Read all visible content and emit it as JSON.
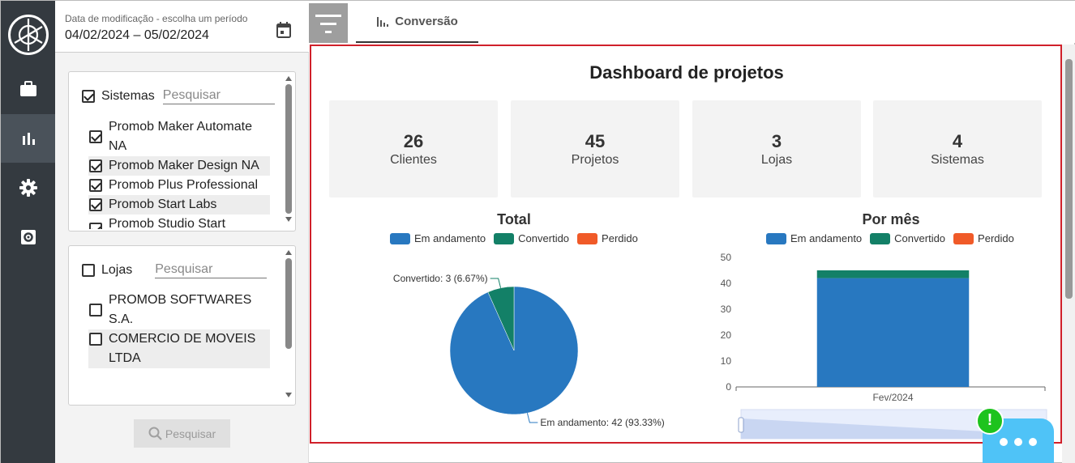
{
  "date_filter": {
    "label": "Data de modificação - escolha um período",
    "value": "04/02/2024 – 05/02/2024"
  },
  "systems": {
    "label": "Sistemas",
    "search_placeholder": "Pesquisar",
    "items": [
      {
        "line1": "Promob Maker Automate",
        "line2": "NA"
      },
      {
        "line1": "Promob Maker Design NA"
      },
      {
        "line1": "Promob Plus Professional"
      },
      {
        "line1": "Promob Start Labs"
      },
      {
        "line1": "Promob Studio Start"
      }
    ]
  },
  "stores": {
    "label": "Lojas",
    "search_placeholder": "Pesquisar",
    "items": [
      {
        "line1": "PROMOB SOFTWARES S.A."
      },
      {
        "line1": "COMERCIO DE MOVEIS",
        "line2": "LTDA"
      }
    ]
  },
  "search_button": "Pesquisar",
  "tab": {
    "label": "Conversão"
  },
  "dashboard": {
    "title": "Dashboard de projetos",
    "cards": [
      {
        "value": "26",
        "caption": "Clientes"
      },
      {
        "value": "45",
        "caption": "Projetos"
      },
      {
        "value": "3",
        "caption": "Lojas"
      },
      {
        "value": "4",
        "caption": "Sistemas"
      }
    ]
  },
  "chart_data": [
    {
      "type": "pie",
      "title": "Total",
      "legend": [
        "Em andamento",
        "Convertido",
        "Perdido"
      ],
      "colors": [
        "#2878c0",
        "#138067",
        "#f05a28"
      ],
      "slices": [
        {
          "name": "Em andamento",
          "value": 42,
          "label": "Em andamento: 42 (93.33%)"
        },
        {
          "name": "Convertido",
          "value": 3,
          "label": "Convertido: 3 (6.67%)"
        },
        {
          "name": "Perdido",
          "value": 0
        }
      ]
    },
    {
      "type": "bar",
      "title": "Por mês",
      "legend": [
        "Em andamento",
        "Convertido",
        "Perdido"
      ],
      "colors": [
        "#2878c0",
        "#138067",
        "#f05a28"
      ],
      "categories": [
        "Fev/2024"
      ],
      "series": [
        {
          "name": "Em andamento",
          "values": [
            42
          ]
        },
        {
          "name": "Convertido",
          "values": [
            3
          ]
        },
        {
          "name": "Perdido",
          "values": [
            0
          ]
        }
      ],
      "ylim": [
        0,
        50
      ],
      "yticks": [
        "50",
        "40",
        "30",
        "20",
        "10",
        "0"
      ],
      "stacked": true
    }
  ],
  "alert_badge": "!"
}
